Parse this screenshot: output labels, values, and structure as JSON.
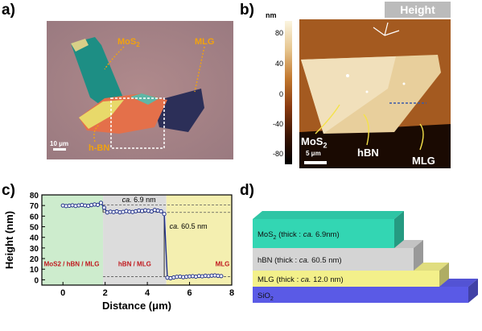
{
  "panels": {
    "a": {
      "letter": "a)",
      "labels": {
        "mos2": "MoS",
        "mos2_sub": "2",
        "mlg": "MLG",
        "hbn": "h-BN"
      },
      "scalebar": "10 μm"
    },
    "b": {
      "letter": "b)",
      "header": "Height",
      "unit": "nm",
      "colorbar_ticks": [
        "80",
        "40",
        "0",
        "-40",
        "-80"
      ],
      "labels": {
        "mos2": "MoS",
        "mos2_sub": "2",
        "hbn": "hBN",
        "mlg": "MLG"
      },
      "scalebar": "5 μm"
    },
    "c": {
      "letter": "c)"
    },
    "d": {
      "letter": "d)",
      "layers": [
        {
          "text_main": "MoS",
          "text_sub": "2",
          "text_rest": " (thick : ",
          "text_ca": "ca.",
          "text_val": " 6.9nm)",
          "color": "#33d6b3"
        },
        {
          "text_main": "hBN",
          "text_sub": "",
          "text_rest": "  (thick : ",
          "text_ca": "ca.",
          "text_val": " 60.5 nm)",
          "color": "#d4d4d4"
        },
        {
          "text_main": "MLG",
          "text_sub": "",
          "text_rest": " (thick : ",
          "text_ca": "ca.",
          "text_val": " 12.0 nm)",
          "color": "#f3f08a"
        },
        {
          "text_main": "SiO",
          "text_sub": "2",
          "text_rest": "",
          "text_ca": "",
          "text_val": "",
          "color": "#5a5ae6"
        }
      ]
    }
  },
  "chart_data": {
    "type": "line",
    "xlabel": "Distance (μm)",
    "ylabel": "Height (nm)",
    "xlim": [
      -1,
      8
    ],
    "ylim": [
      -5,
      80
    ],
    "xticks": [
      0,
      2,
      4,
      6,
      8
    ],
    "yticks": [
      0,
      10,
      20,
      30,
      40,
      50,
      60,
      70,
      80
    ],
    "regions": [
      {
        "label": "MoS2 / hBN / MLG",
        "x": [
          -1,
          1.9
        ],
        "color": "#cdeccd"
      },
      {
        "label": "hBN / MLG",
        "x": [
          1.9,
          4.9
        ],
        "color": "#dcdcdc"
      },
      {
        "label": "MLG",
        "x": [
          4.9,
          8
        ],
        "color": "#f4efb0"
      }
    ],
    "annotations": [
      {
        "text_ca": "ca.",
        "text_val": " 6.9 nm"
      },
      {
        "text_ca": "ca.",
        "text_val": " 60.5 nm"
      }
    ],
    "reference_lines": [
      70.4,
      63.5,
      3.0
    ],
    "series": [
      {
        "x": [
          0.0,
          0.15,
          0.3,
          0.45,
          0.6,
          0.75,
          0.9,
          1.05,
          1.2,
          1.35,
          1.5,
          1.65,
          1.8,
          1.95,
          2.1,
          2.25,
          2.4,
          2.55,
          2.7,
          2.85,
          3.0,
          3.15,
          3.3,
          3.45,
          3.6,
          3.75,
          3.9,
          4.05,
          4.2,
          4.35,
          4.5,
          4.65,
          4.8,
          4.95,
          5.1,
          5.25,
          5.4,
          5.55,
          5.7,
          5.85,
          6.0,
          6.15,
          6.3,
          6.45,
          6.6,
          6.75,
          6.9,
          7.05,
          7.2,
          7.35,
          7.5
        ],
        "y": [
          70,
          69.5,
          69.8,
          70.2,
          69.6,
          70.1,
          70.5,
          70.0,
          69.7,
          70.4,
          71.0,
          70.6,
          72.5,
          68.0,
          63.5,
          64.2,
          63.8,
          64.5,
          63.6,
          64.0,
          64.8,
          64.2,
          63.9,
          64.6,
          65.2,
          64.8,
          65.5,
          65.0,
          64.4,
          65.8,
          65.2,
          64.6,
          62.0,
          2.0,
          1.5,
          2.2,
          2.8,
          3.0,
          2.5,
          2.9,
          3.2,
          3.4,
          3.0,
          3.6,
          3.3,
          3.8,
          3.5,
          3.9,
          4.1,
          3.7,
          3.5
        ]
      }
    ]
  }
}
